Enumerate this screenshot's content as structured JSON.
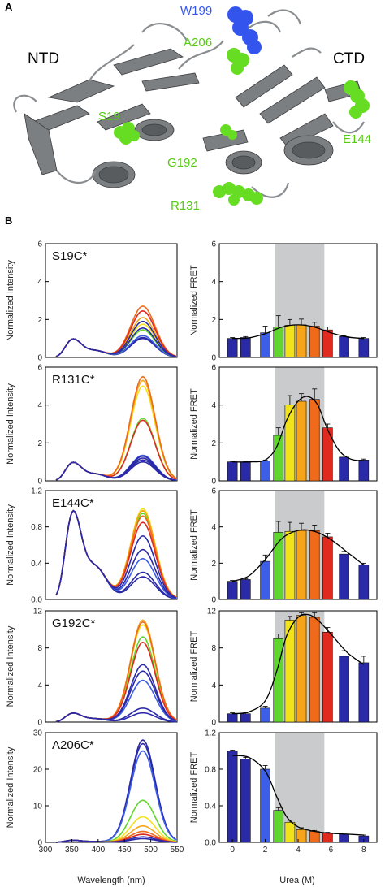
{
  "panel_labels": {
    "a": "A",
    "b": "B"
  },
  "structure": {
    "domain_labels": [
      "NTD",
      "CTD"
    ],
    "residues": [
      {
        "label": "W199",
        "color": "#3355ee"
      },
      {
        "label": "A206",
        "color": "#66dd22"
      },
      {
        "label": "S19",
        "color": "#66dd22"
      },
      {
        "label": "E144",
        "color": "#66dd22"
      },
      {
        "label": "G192",
        "color": "#66dd22"
      },
      {
        "label": "R131",
        "color": "#66dd22"
      }
    ]
  },
  "colors": {
    "urea_palette": [
      "#2a2aa8",
      "#2a2aa8",
      "#3d5fe8",
      "#5fd62e",
      "#f2e21a",
      "#f6a51a",
      "#ef6a1a",
      "#e02a20",
      "#2a2aa8",
      "#2a2aa8"
    ],
    "shade": "#c9cbcc",
    "fit_line": "#000000"
  },
  "chart_data": [
    {
      "type": "line",
      "name": "S19C*",
      "ylabel": "Normalized Intensity",
      "xlabel": "Wavelength (nm)",
      "xlim": [
        300,
        550
      ],
      "ylim": [
        0,
        6
      ],
      "yticks": [
        "0",
        "2",
        "4",
        "6"
      ],
      "xticks": [
        "300",
        "350",
        "400",
        "450",
        "500",
        "550"
      ],
      "peak_ratios": [
        1.0,
        1.05,
        1.15,
        1.45,
        1.75,
        2.1,
        2.7,
        2.45,
        1.9,
        1.55
      ]
    },
    {
      "type": "bar",
      "name": "S19C*",
      "ylabel": "Normalized FRET",
      "xlabel": "Urea (M)",
      "ylim": [
        0,
        6
      ],
      "yticks": [
        "0",
        "2",
        "4",
        "6"
      ],
      "xticks": [
        "0",
        "2",
        "4",
        "6",
        "8"
      ],
      "shade_range": [
        2.6,
        5.6
      ],
      "urea": [
        0,
        0.8,
        2,
        2.8,
        3.5,
        4.2,
        5.0,
        5.8,
        6.8,
        8
      ],
      "values": [
        1.0,
        1.05,
        1.3,
        1.6,
        1.7,
        1.72,
        1.65,
        1.45,
        1.1,
        1.0
      ],
      "errors": [
        0.05,
        0.05,
        0.35,
        0.6,
        0.3,
        0.3,
        0.2,
        0.15,
        0.05,
        0.05
      ],
      "fit": [
        [
          0,
          1.0
        ],
        [
          1,
          1.03
        ],
        [
          2,
          1.25
        ],
        [
          3,
          1.6
        ],
        [
          4,
          1.72
        ],
        [
          5,
          1.6
        ],
        [
          6,
          1.3
        ],
        [
          7,
          1.08
        ],
        [
          8,
          1.0
        ]
      ]
    },
    {
      "type": "line",
      "name": "R131C*",
      "ylabel": "Normalized Intensity",
      "xlabel": "Wavelength (nm)",
      "xlim": [
        300,
        550
      ],
      "ylim": [
        0,
        6
      ],
      "yticks": [
        "0",
        "2",
        "4",
        "6"
      ],
      "xticks": [
        "300",
        "350",
        "400",
        "450",
        "500",
        "550"
      ],
      "peak_ratios": [
        1.0,
        1.2,
        1.35,
        3.3,
        5.0,
        5.3,
        5.5,
        3.2,
        1.3,
        1.1
      ]
    },
    {
      "type": "bar",
      "name": "R131C*",
      "ylabel": "Normalized FRET",
      "xlabel": "Urea (M)",
      "ylim": [
        0,
        6
      ],
      "yticks": [
        "0",
        "2",
        "4",
        "6"
      ],
      "xticks": [
        "0",
        "2",
        "4",
        "6",
        "8"
      ],
      "shade_range": [
        2.6,
        5.6
      ],
      "urea": [
        0,
        0.8,
        2,
        2.8,
        3.5,
        4.2,
        5.0,
        5.8,
        6.8,
        8
      ],
      "values": [
        1.0,
        1.0,
        1.05,
        2.4,
        4.0,
        4.2,
        4.3,
        2.8,
        1.25,
        1.1
      ],
      "errors": [
        0.03,
        0.03,
        0.05,
        0.4,
        0.5,
        0.4,
        0.55,
        0.2,
        0.05,
        0.05
      ],
      "fit": [
        [
          0,
          1.0
        ],
        [
          1,
          1.0
        ],
        [
          2,
          1.1
        ],
        [
          2.7,
          1.8
        ],
        [
          3.3,
          3.2
        ],
        [
          4,
          4.2
        ],
        [
          4.6,
          4.45
        ],
        [
          5.2,
          4.0
        ],
        [
          5.8,
          2.7
        ],
        [
          6.5,
          1.6
        ],
        [
          7.2,
          1.15
        ],
        [
          8,
          1.05
        ]
      ]
    },
    {
      "type": "line",
      "name": "E144C*",
      "ylabel": "Normalized Intensity",
      "xlabel": "Wavelength (nm)",
      "xlim": [
        300,
        550
      ],
      "ylim": [
        0,
        1.2
      ],
      "yticks": [
        "0.0",
        "0.4",
        "0.8",
        "1.2"
      ],
      "xticks": [
        "300",
        "350",
        "400",
        "450",
        "500",
        "550"
      ],
      "peak_ratios": [
        0.25,
        0.3,
        0.45,
        0.95,
        1.0,
        0.98,
        0.92,
        0.85,
        0.7,
        0.55
      ]
    },
    {
      "type": "bar",
      "name": "E144C*",
      "ylabel": "Normalized FRET",
      "xlabel": "Urea (M)",
      "ylim": [
        0,
        6
      ],
      "yticks": [
        "0",
        "2",
        "4",
        "6"
      ],
      "xticks": [
        "0",
        "2",
        "4",
        "6",
        "8"
      ],
      "shade_range": [
        2.6,
        5.6
      ],
      "urea": [
        0,
        0.8,
        2,
        2.8,
        3.5,
        4.2,
        5.0,
        5.8,
        6.8,
        8
      ],
      "values": [
        1.0,
        1.1,
        2.1,
        3.7,
        3.75,
        3.8,
        3.8,
        3.45,
        2.5,
        1.9
      ],
      "errors": [
        0.05,
        0.05,
        0.35,
        0.6,
        0.5,
        0.4,
        0.3,
        0.2,
        0.15,
        0.1
      ],
      "fit": [
        [
          0,
          1.0
        ],
        [
          1,
          1.3
        ],
        [
          2,
          2.2
        ],
        [
          3,
          3.35
        ],
        [
          4,
          3.8
        ],
        [
          5,
          3.75
        ],
        [
          6,
          3.3
        ],
        [
          7,
          2.6
        ],
        [
          8,
          1.9
        ]
      ]
    },
    {
      "type": "line",
      "name": "G192C*",
      "ylabel": "Normalized Intensity",
      "xlabel": "Wavelength (nm)",
      "xlim": [
        300,
        550
      ],
      "ylim": [
        0,
        12
      ],
      "yticks": [
        "0",
        "4",
        "8",
        "12"
      ],
      "xticks": [
        "300",
        "350",
        "400",
        "450",
        "500",
        "550"
      ],
      "peak_ratios": [
        1.0,
        1.5,
        4.5,
        9.2,
        10.5,
        11.0,
        10.8,
        8.6,
        6.2,
        5.5
      ]
    },
    {
      "type": "bar",
      "name": "G192C*",
      "ylabel": "Normalized FRET",
      "xlabel": "Urea (M)",
      "ylim": [
        0,
        12
      ],
      "yticks": [
        "0",
        "4",
        "8",
        "12"
      ],
      "xticks": [
        "0",
        "2",
        "4",
        "6",
        "8"
      ],
      "shade_range": [
        2.6,
        5.6
      ],
      "urea": [
        0,
        0.8,
        2,
        2.8,
        3.5,
        4.2,
        5.0,
        5.8,
        6.8,
        8
      ],
      "values": [
        0.9,
        0.9,
        1.5,
        9.0,
        11.0,
        11.5,
        11.3,
        9.7,
        7.1,
        6.4
      ],
      "errors": [
        0.1,
        0.1,
        0.2,
        0.5,
        0.4,
        0.3,
        0.5,
        0.5,
        0.6,
        0.7
      ],
      "fit": [
        [
          0,
          0.9
        ],
        [
          1,
          1.1
        ],
        [
          2,
          2.3
        ],
        [
          2.7,
          5.5
        ],
        [
          3.3,
          9.3
        ],
        [
          4,
          11.3
        ],
        [
          4.6,
          11.6
        ],
        [
          5.2,
          11.0
        ],
        [
          6,
          9.5
        ],
        [
          7,
          7.5
        ],
        [
          8,
          6.2
        ]
      ]
    },
    {
      "type": "line",
      "name": "A206C*",
      "ylabel": "Normalized Intensity",
      "xlabel": "Wavelength (nm)",
      "xlim": [
        300,
        550
      ],
      "ylim": [
        0,
        30
      ],
      "yticks": [
        "0",
        "10",
        "20",
        "30"
      ],
      "xticks": [
        "300",
        "350",
        "400",
        "450",
        "500",
        "550"
      ],
      "peak_ratios": [
        28.0,
        27.0,
        25.0,
        11.5,
        7.0,
        4.5,
        3.0,
        2.2,
        1.5,
        1.0
      ]
    },
    {
      "type": "bar",
      "name": "A206C*",
      "ylabel": "Normalized FRET",
      "xlabel": "Urea (M)",
      "ylim": [
        0,
        1.2
      ],
      "yticks": [
        "0.0",
        "0.4",
        "0.8",
        "1.2"
      ],
      "xticks": [
        "0",
        "2",
        "4",
        "6",
        "8"
      ],
      "shade_range": [
        2.6,
        5.6
      ],
      "urea": [
        0,
        0.8,
        2,
        2.8,
        3.5,
        4.2,
        5.0,
        5.8,
        6.8,
        8
      ],
      "values": [
        1.0,
        0.91,
        0.8,
        0.35,
        0.22,
        0.14,
        0.12,
        0.1,
        0.09,
        0.07
      ],
      "errors": [
        0.01,
        0.02,
        0.04,
        0.03,
        0.02,
        0.02,
        0.01,
        0.01,
        0.01,
        0.01
      ],
      "fit": [
        [
          0,
          0.95
        ],
        [
          1,
          0.93
        ],
        [
          2,
          0.78
        ],
        [
          2.7,
          0.5
        ],
        [
          3.3,
          0.28
        ],
        [
          4,
          0.17
        ],
        [
          5,
          0.12
        ],
        [
          6,
          0.1
        ],
        [
          7,
          0.09
        ],
        [
          8,
          0.08
        ]
      ]
    }
  ],
  "axes_text": {
    "spectra_xlabel": "Wavelength (nm)",
    "fret_xlabel": "Urea (M)"
  }
}
